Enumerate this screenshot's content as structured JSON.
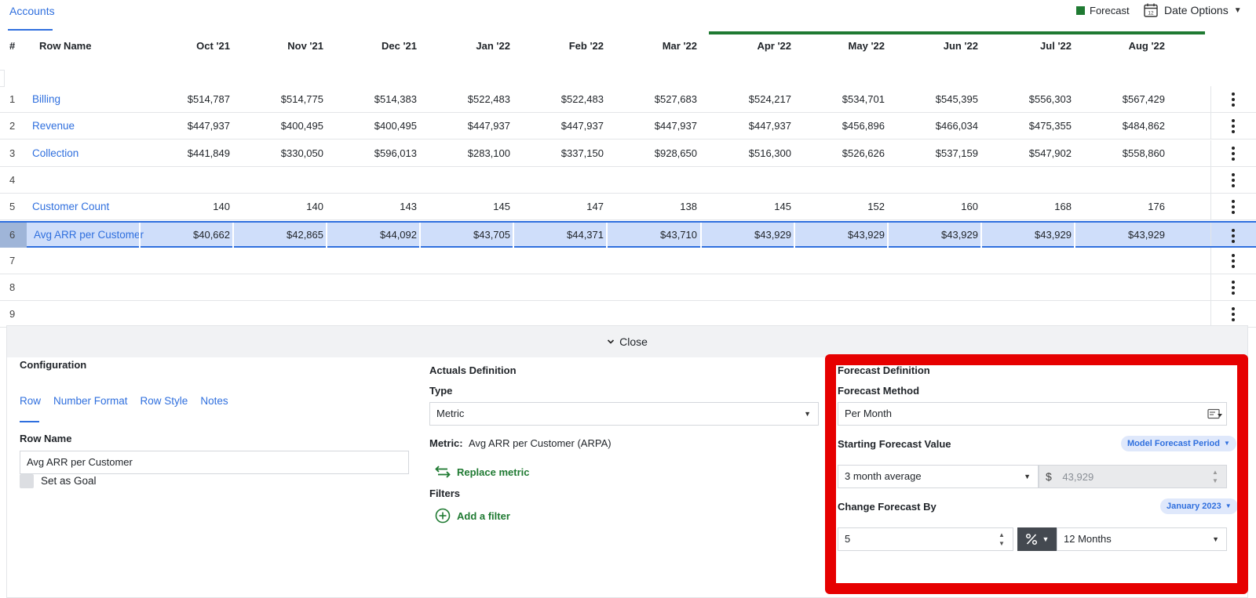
{
  "topbar": {
    "tab_label": "Accounts",
    "legend_label": "Forecast",
    "date_options_label": "Date Options",
    "calendar_day": "12"
  },
  "colors": {
    "accent_blue": "#2f6fde",
    "forecast_green": "#1f7a32",
    "selected_row": "#cfdefa",
    "highlight_red": "#e60000"
  },
  "grid": {
    "headers": {
      "num": "#",
      "row_name": "Row Name",
      "months": [
        "Oct '21",
        "Nov '21",
        "Dec '21",
        "Jan '22",
        "Feb '22",
        "Mar '22",
        "Apr '22",
        "May '22",
        "Jun '22",
        "Jul '22",
        "Aug '22"
      ]
    },
    "rows": [
      {
        "num": "1",
        "name": "Billing",
        "values": [
          "$514,787",
          "$514,775",
          "$514,383",
          "$522,483",
          "$522,483",
          "$527,683",
          "$524,217",
          "$534,701",
          "$545,395",
          "$556,303",
          "$567,429"
        ]
      },
      {
        "num": "2",
        "name": "Revenue",
        "values": [
          "$447,937",
          "$400,495",
          "$400,495",
          "$447,937",
          "$447,937",
          "$447,937",
          "$447,937",
          "$456,896",
          "$466,034",
          "$475,355",
          "$484,862"
        ]
      },
      {
        "num": "3",
        "name": "Collection",
        "values": [
          "$441,849",
          "$330,050",
          "$596,013",
          "$283,100",
          "$337,150",
          "$928,650",
          "$516,300",
          "$526,626",
          "$537,159",
          "$547,902",
          "$558,860"
        ]
      },
      {
        "num": "4",
        "name": "",
        "values": [
          "",
          "",
          "",
          "",
          "",
          "",
          "",
          "",
          "",
          "",
          ""
        ]
      },
      {
        "num": "5",
        "name": "Customer Count",
        "values": [
          "140",
          "140",
          "143",
          "145",
          "147",
          "138",
          "145",
          "152",
          "160",
          "168",
          "176"
        ]
      },
      {
        "num": "6",
        "name": "Avg ARR per Customer",
        "values": [
          "$40,662",
          "$42,865",
          "$44,092",
          "$43,705",
          "$44,371",
          "$43,710",
          "$43,929",
          "$43,929",
          "$43,929",
          "$43,929",
          "$43,929"
        ]
      },
      {
        "num": "7",
        "name": "",
        "values": [
          "",
          "",
          "",
          "",
          "",
          "",
          "",
          "",
          "",
          "",
          ""
        ]
      },
      {
        "num": "8",
        "name": "",
        "values": [
          "",
          "",
          "",
          "",
          "",
          "",
          "",
          "",
          "",
          "",
          ""
        ]
      },
      {
        "num": "9",
        "name": "",
        "values": [
          "",
          "",
          "",
          "",
          "",
          "",
          "",
          "",
          "",
          "",
          ""
        ]
      }
    ]
  },
  "panel": {
    "close_label": "Close",
    "configuration": {
      "title": "Configuration",
      "tabs": [
        "Row",
        "Number Format",
        "Row Style",
        "Notes"
      ],
      "row_name_label": "Row Name",
      "row_name_value": "Avg ARR per Customer",
      "goal_label": "Set as Goal"
    },
    "actuals": {
      "title": "Actuals Definition",
      "type_label": "Type",
      "type_value": "Metric",
      "metric_label": "Metric:",
      "metric_value": "Avg ARR per Customer (ARPA)",
      "replace_label": "Replace metric",
      "filters_label": "Filters",
      "add_filter_label": "Add a filter"
    },
    "forecast": {
      "title": "Forecast Definition",
      "method_label": "Forecast Method",
      "method_value": "Per Month",
      "starting_label": "Starting Forecast Value",
      "starting_pill": "Model Forecast Period",
      "starting_select": "3 month average",
      "currency_symbol": "$",
      "starting_amount": "43,929",
      "change_label": "Change Forecast By",
      "change_pill": "January 2023",
      "change_value": "5",
      "period_value": "12 Months"
    }
  }
}
